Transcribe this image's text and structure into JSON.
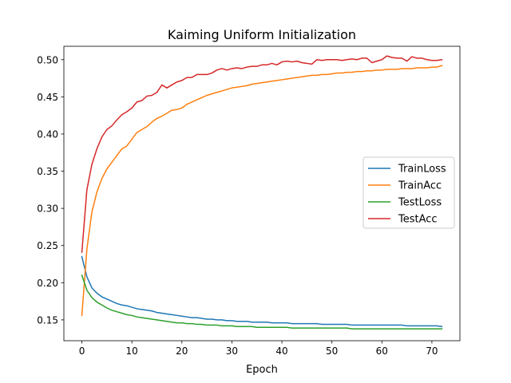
{
  "chart_data": {
    "type": "line",
    "title": "Kaiming Uniform Initialization",
    "xlabel": "Epoch",
    "ylabel": "",
    "xlim": [
      -3.6,
      75.6
    ],
    "ylim": [
      0.122,
      0.518
    ],
    "xticks": [
      0,
      10,
      20,
      30,
      40,
      50,
      60,
      70
    ],
    "yticks": [
      0.15,
      0.2,
      0.25,
      0.3,
      0.35,
      0.4,
      0.45,
      0.5
    ],
    "grid": false,
    "legend_position": "center-right",
    "x": [
      0,
      1,
      2,
      3,
      4,
      5,
      6,
      7,
      8,
      9,
      10,
      11,
      12,
      13,
      14,
      15,
      16,
      17,
      18,
      19,
      20,
      21,
      22,
      23,
      24,
      25,
      26,
      27,
      28,
      29,
      30,
      31,
      32,
      33,
      34,
      35,
      36,
      37,
      38,
      39,
      40,
      41,
      42,
      43,
      44,
      45,
      46,
      47,
      48,
      49,
      50,
      51,
      52,
      53,
      54,
      55,
      56,
      57,
      58,
      59,
      60,
      61,
      62,
      63,
      64,
      65,
      66,
      67,
      68,
      69,
      70,
      71,
      72
    ],
    "series": [
      {
        "name": "TrainLoss",
        "color": "#1f77b4",
        "values": [
          0.235,
          0.208,
          0.193,
          0.186,
          0.181,
          0.178,
          0.175,
          0.172,
          0.17,
          0.169,
          0.167,
          0.165,
          0.164,
          0.163,
          0.162,
          0.16,
          0.159,
          0.158,
          0.157,
          0.156,
          0.155,
          0.154,
          0.153,
          0.153,
          0.152,
          0.151,
          0.151,
          0.15,
          0.15,
          0.149,
          0.149,
          0.148,
          0.148,
          0.148,
          0.147,
          0.147,
          0.147,
          0.147,
          0.146,
          0.146,
          0.146,
          0.146,
          0.145,
          0.145,
          0.145,
          0.145,
          0.145,
          0.145,
          0.144,
          0.144,
          0.144,
          0.144,
          0.144,
          0.144,
          0.143,
          0.143,
          0.143,
          0.143,
          0.143,
          0.143,
          0.143,
          0.143,
          0.143,
          0.143,
          0.143,
          0.142,
          0.142,
          0.142,
          0.142,
          0.142,
          0.142,
          0.142,
          0.141
        ]
      },
      {
        "name": "TrainAcc",
        "color": "#ff7f0e",
        "values": [
          0.156,
          0.245,
          0.295,
          0.322,
          0.34,
          0.353,
          0.362,
          0.371,
          0.38,
          0.384,
          0.393,
          0.402,
          0.406,
          0.41,
          0.416,
          0.421,
          0.424,
          0.428,
          0.432,
          0.433,
          0.435,
          0.44,
          0.443,
          0.446,
          0.449,
          0.452,
          0.454,
          0.456,
          0.458,
          0.46,
          0.462,
          0.463,
          0.464,
          0.465,
          0.467,
          0.468,
          0.469,
          0.47,
          0.471,
          0.472,
          0.473,
          0.474,
          0.475,
          0.476,
          0.477,
          0.478,
          0.479,
          0.479,
          0.48,
          0.48,
          0.481,
          0.482,
          0.482,
          0.483,
          0.483,
          0.484,
          0.484,
          0.485,
          0.485,
          0.486,
          0.486,
          0.487,
          0.487,
          0.487,
          0.488,
          0.488,
          0.488,
          0.489,
          0.489,
          0.489,
          0.49,
          0.49,
          0.492
        ]
      },
      {
        "name": "TestLoss",
        "color": "#2ca02c",
        "values": [
          0.21,
          0.19,
          0.18,
          0.174,
          0.17,
          0.166,
          0.163,
          0.161,
          0.159,
          0.157,
          0.156,
          0.154,
          0.153,
          0.152,
          0.151,
          0.15,
          0.149,
          0.148,
          0.147,
          0.146,
          0.146,
          0.145,
          0.145,
          0.144,
          0.144,
          0.143,
          0.143,
          0.143,
          0.142,
          0.142,
          0.142,
          0.141,
          0.141,
          0.141,
          0.141,
          0.14,
          0.14,
          0.14,
          0.14,
          0.14,
          0.14,
          0.14,
          0.139,
          0.139,
          0.139,
          0.139,
          0.139,
          0.139,
          0.139,
          0.139,
          0.139,
          0.139,
          0.139,
          0.139,
          0.138,
          0.138,
          0.138,
          0.138,
          0.138,
          0.138,
          0.138,
          0.138,
          0.138,
          0.138,
          0.138,
          0.138,
          0.138,
          0.138,
          0.138,
          0.138,
          0.138,
          0.138,
          0.138
        ]
      },
      {
        "name": "TestAcc",
        "color": "#d62728",
        "values": [
          0.241,
          0.325,
          0.359,
          0.38,
          0.396,
          0.406,
          0.411,
          0.419,
          0.426,
          0.43,
          0.435,
          0.443,
          0.445,
          0.451,
          0.452,
          0.456,
          0.466,
          0.462,
          0.466,
          0.47,
          0.472,
          0.476,
          0.476,
          0.48,
          0.48,
          0.48,
          0.482,
          0.486,
          0.488,
          0.486,
          0.488,
          0.489,
          0.488,
          0.49,
          0.491,
          0.491,
          0.493,
          0.493,
          0.495,
          0.493,
          0.497,
          0.498,
          0.497,
          0.498,
          0.496,
          0.495,
          0.494,
          0.5,
          0.499,
          0.5,
          0.5,
          0.5,
          0.499,
          0.5,
          0.501,
          0.5,
          0.502,
          0.502,
          0.496,
          0.498,
          0.5,
          0.505,
          0.503,
          0.502,
          0.502,
          0.498,
          0.504,
          0.502,
          0.502,
          0.5,
          0.499,
          0.499,
          0.5
        ]
      }
    ]
  }
}
